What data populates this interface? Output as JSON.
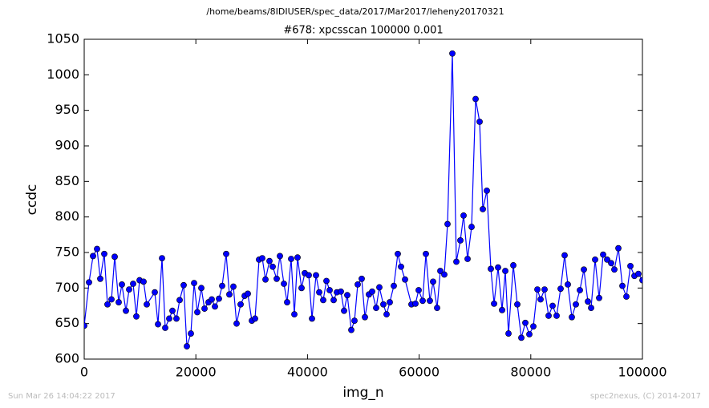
{
  "header": "/home/beams/8IDIUSER/spec_data/2017/Mar2017/leheny20170321",
  "footer_left": "Sun Mar 26 14:04:22 2017",
  "footer_right": "spec2nexus, (C) 2014-2017",
  "chart_data": {
    "type": "line",
    "title": "#678: xpcsscan 100000 0.001",
    "x_label": "img_n",
    "y_label": "ccdc",
    "xlim": [
      0,
      100000
    ],
    "ylim": [
      600,
      1050
    ],
    "xticks": [
      0,
      20000,
      40000,
      60000,
      80000,
      100000
    ],
    "yticks": [
      600,
      650,
      700,
      750,
      800,
      850,
      900,
      950,
      1000,
      1050
    ],
    "series": [
      {
        "name": "ccdc",
        "color": "#0000ff",
        "x": [
          0,
          862,
          1580,
          2299,
          2874,
          3592,
          4167,
          4885,
          5460,
          6178,
          6753,
          7471,
          8046,
          8764,
          9339,
          9914,
          10632,
          11207,
          12644,
          13219,
          13937,
          14512,
          15230,
          15805,
          16523,
          17098,
          17816,
          18391,
          19109,
          19684,
          20259,
          20977,
          21552,
          22270,
          22845,
          23420,
          24138,
          24713,
          25431,
          26006,
          26724,
          27299,
          28018,
          28736,
          29311,
          30029,
          30604,
          31322,
          31897,
          32472,
          33190,
          33765,
          34483,
          35058,
          35776,
          36351,
          37069,
          37644,
          38219,
          38937,
          39512,
          40230,
          40805,
          41523,
          42098,
          42816,
          43391,
          43966,
          44684,
          45259,
          45978,
          46552,
          47127,
          47845,
          48420,
          48995,
          49713,
          50288,
          51006,
          51581,
          52299,
          52874,
          53592,
          54167,
          54742,
          55460,
          56178,
          56754,
          57472,
          58621,
          59339,
          59914,
          60632,
          61207,
          61925,
          62500,
          63218,
          63793,
          64511,
          65086,
          65949,
          66667,
          67386,
          67960,
          68679,
          69397,
          70116,
          70834,
          71409,
          72127,
          72846,
          73421,
          74139,
          74857,
          75432,
          76007,
          76869,
          77587,
          78306,
          79024,
          79742,
          80461,
          81179,
          81754,
          82472,
          83191,
          83909,
          84627,
          85346,
          86064,
          86639,
          87357,
          88076,
          88794,
          89513,
          90231,
          90806,
          91524,
          92243,
          92961,
          93679,
          94398,
          94972,
          95691,
          96409,
          97128,
          97846,
          98564,
          99283,
          100000
        ],
        "values": [
          647,
          708,
          745,
          755,
          713,
          748,
          677,
          684,
          744,
          680,
          705,
          668,
          698,
          706,
          660,
          711,
          709,
          677,
          694,
          649,
          742,
          644,
          657,
          668,
          657,
          683,
          704,
          618,
          636,
          707,
          666,
          700,
          671,
          680,
          684,
          674,
          685,
          703,
          748,
          691,
          702,
          650,
          677,
          689,
          692,
          654,
          657,
          740,
          742,
          712,
          738,
          730,
          713,
          745,
          706,
          680,
          741,
          663,
          743,
          700,
          721,
          718,
          657,
          718,
          694,
          683,
          710,
          697,
          683,
          694,
          695,
          668,
          690,
          641,
          654,
          705,
          713,
          659,
          691,
          695,
          672,
          701,
          677,
          663,
          680,
          703,
          748,
          730,
          712,
          677,
          678,
          697,
          682,
          748,
          682,
          709,
          672,
          724,
          719,
          790,
          1030,
          737,
          767,
          802,
          741,
          786,
          966,
          934,
          811,
          837,
          727,
          678,
          729,
          669,
          724,
          636,
          732,
          677,
          630,
          651,
          635,
          646,
          698,
          684,
          698,
          661,
          675,
          661,
          699,
          746,
          705,
          659,
          677,
          697,
          726,
          681,
          672,
          740,
          686,
          747,
          740,
          735,
          726,
          756,
          703,
          688,
          731,
          717,
          720,
          711
        ]
      }
    ]
  }
}
